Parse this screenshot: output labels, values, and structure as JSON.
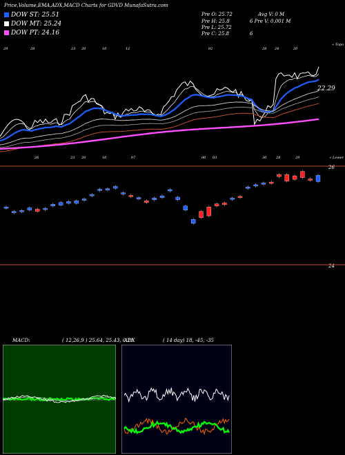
{
  "header": {
    "title": "Price,Volume,EMA,ADX,MACD Charts for GDVD MunafaSutra.com"
  },
  "legend": [
    {
      "label": "DOW ST: 25.51",
      "color": "#1e5fff"
    },
    {
      "label": "DOW MT: 25.24",
      "color": "#ffffff"
    },
    {
      "label": "DOW PT: 24.16",
      "color": "#ff4fff"
    }
  ],
  "stats": {
    "col1": [
      "Pre   O: 25.72",
      "Pre   H: 25.8",
      "Pre   L: 25.72",
      "Pre   C: 25.8"
    ],
    "col2": [
      "Avg V: 0   M",
      "6      Pre   V: 0.001 M",
      "",
      "6"
    ]
  },
  "colors": {
    "ema_short": "#1e5fff",
    "ema_mid": "#ffffff",
    "ema_long": "#ff4fff",
    "ema_brown": "#c0502a",
    "up": "#1e5fff",
    "down": "#ff2020",
    "adx": "#ffffff",
    "di_plus": "#00ff00",
    "di_minus": "#ff6600"
  },
  "price_panel": {
    "label_top": "« Topo",
    "label_bottom": "« Lower",
    "last_value": "22.29",
    "date_labels_top": [
      "29",
      "28",
      "23",
      "20",
      "16",
      "12",
      "02",
      "28",
      "24",
      "20"
    ],
    "date_labels_bottom": [
      "26",
      "23",
      "20",
      "16",
      "07",
      "06",
      "03",
      "30",
      "28",
      "29"
    ]
  },
  "candle_panel": {
    "scale_top": "26",
    "scale_bottom": "24",
    "chart_data": {
      "type": "candlestick",
      "ylim": [
        23.85,
        26.1
      ],
      "candles": [
        {
          "o": 25.12,
          "c": 25.1,
          "dir": "up"
        },
        {
          "o": 25.0,
          "c": 25.02,
          "dir": "up"
        },
        {
          "o": 25.02,
          "c": 25.04,
          "dir": "up"
        },
        {
          "o": 25.05,
          "c": 25.1,
          "dir": "up"
        },
        {
          "o": 25.07,
          "c": 25.02,
          "dir": "down"
        },
        {
          "o": 25.07,
          "c": 25.09,
          "dir": "up"
        },
        {
          "o": 25.14,
          "c": 25.18,
          "dir": "up"
        },
        {
          "o": 25.16,
          "c": 25.22,
          "dir": "up"
        },
        {
          "o": 25.2,
          "c": 25.24,
          "dir": "up"
        },
        {
          "o": 25.2,
          "c": 25.26,
          "dir": "up"
        },
        {
          "o": 25.3,
          "c": 25.28,
          "dir": "up"
        },
        {
          "o": 25.4,
          "c": 25.4,
          "dir": "up"
        },
        {
          "o": 25.5,
          "c": 25.52,
          "dir": "up"
        },
        {
          "o": 25.53,
          "c": 25.51,
          "dir": "up"
        },
        {
          "o": 25.54,
          "c": 25.58,
          "dir": "up"
        },
        {
          "o": 25.44,
          "c": 25.42,
          "dir": "up"
        },
        {
          "o": 25.38,
          "c": 25.35,
          "dir": "down"
        },
        {
          "o": 25.31,
          "c": 25.33,
          "dir": "up"
        },
        {
          "o": 25.22,
          "c": 25.26,
          "dir": "down"
        },
        {
          "o": 25.28,
          "c": 25.32,
          "dir": "up"
        },
        {
          "o": 25.33,
          "c": 25.37,
          "dir": "up"
        },
        {
          "o": 25.51,
          "c": 25.49,
          "dir": "up"
        },
        {
          "o": 25.34,
          "c": 25.28,
          "dir": "up"
        },
        {
          "o": 25.14,
          "c": 25.05,
          "dir": "up"
        },
        {
          "o": 24.84,
          "c": 24.75,
          "dir": "up"
        },
        {
          "o": 24.88,
          "c": 25.02,
          "dir": "down"
        },
        {
          "o": 24.92,
          "c": 25.12,
          "dir": "down"
        },
        {
          "o": 25.14,
          "c": 25.19,
          "dir": "down"
        },
        {
          "o": 25.17,
          "c": 25.21,
          "dir": "down"
        },
        {
          "o": 25.3,
          "c": 25.32,
          "dir": "up"
        },
        {
          "o": 25.34,
          "c": 25.36,
          "dir": "down"
        },
        {
          "o": 25.54,
          "c": 25.57,
          "dir": "up"
        },
        {
          "o": 25.6,
          "c": 25.62,
          "dir": "up"
        },
        {
          "o": 25.64,
          "c": 25.66,
          "dir": "up"
        },
        {
          "o": 25.66,
          "c": 25.68,
          "dir": "down"
        },
        {
          "o": 25.85,
          "c": 25.8,
          "dir": "down"
        },
        {
          "o": 25.85,
          "c": 25.7,
          "dir": "down"
        },
        {
          "o": 25.82,
          "c": 25.74,
          "dir": "down"
        },
        {
          "o": 25.92,
          "c": 25.78,
          "dir": "down"
        },
        {
          "o": 25.74,
          "c": 25.75,
          "dir": "down"
        },
        {
          "o": 25.83,
          "c": 25.69,
          "dir": "up"
        }
      ]
    }
  },
  "macd_panel": {
    "label": "MACD:",
    "params": "( 12,26,9 ) 25.64, 25.43, 0.21"
  },
  "adx_panel": {
    "label": "ADX",
    "params": "( 14 day) 18, -45, -35"
  }
}
